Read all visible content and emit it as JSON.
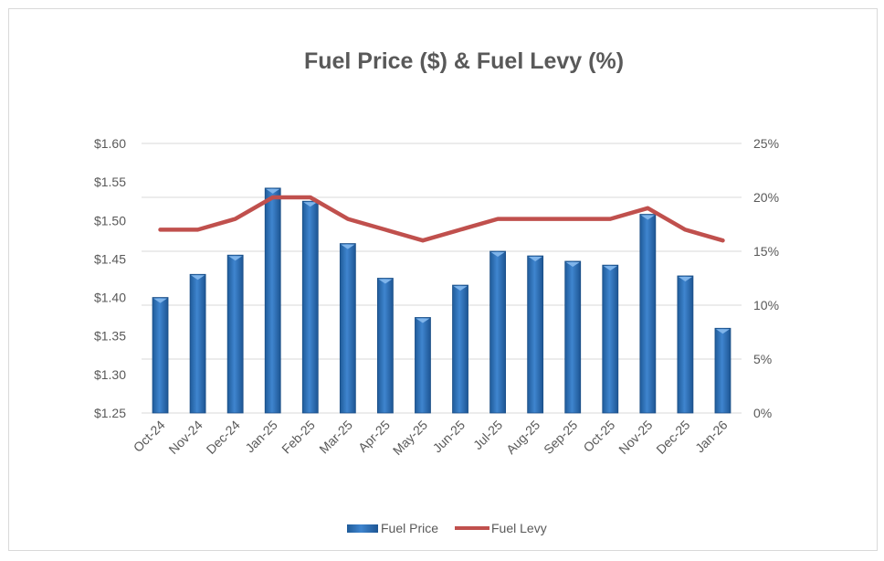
{
  "chart_data": {
    "type": "bar+line",
    "title": "Fuel Price ($) & Fuel Levy (%)",
    "categories": [
      "Oct-24",
      "Nov-24",
      "Dec-24",
      "Jan-25",
      "Feb-25",
      "Mar-25",
      "Apr-25",
      "May-25",
      "Jun-25",
      "Jul-25",
      "Aug-25",
      "Sep-25",
      "Oct-25",
      "Nov-25",
      "Dec-25",
      "Jan-26"
    ],
    "series": [
      {
        "name": "Fuel Price",
        "type": "bar",
        "axis": "left",
        "color": "#2e75b6",
        "values": [
          1.4,
          1.43,
          1.455,
          1.542,
          1.525,
          1.47,
          1.425,
          1.374,
          1.416,
          1.46,
          1.454,
          1.447,
          1.442,
          1.508,
          1.428,
          1.36
        ]
      },
      {
        "name": "Fuel Levy",
        "type": "line",
        "axis": "right",
        "color": "#c0504d",
        "values": [
          17,
          17,
          18,
          20,
          20,
          18,
          17,
          16,
          17,
          18,
          18,
          18,
          18,
          19,
          17,
          16
        ]
      }
    ],
    "y_left": {
      "range": [
        1.25,
        1.6
      ],
      "ticks": [
        "$1.25",
        "$1.30",
        "$1.35",
        "$1.40",
        "$1.45",
        "$1.50",
        "$1.55",
        "$1.60"
      ]
    },
    "y_right": {
      "range": [
        0,
        25
      ],
      "ticks": [
        "0%",
        "5%",
        "10%",
        "15%",
        "20%",
        "25%"
      ]
    },
    "grid": true,
    "legend": "bottom"
  }
}
